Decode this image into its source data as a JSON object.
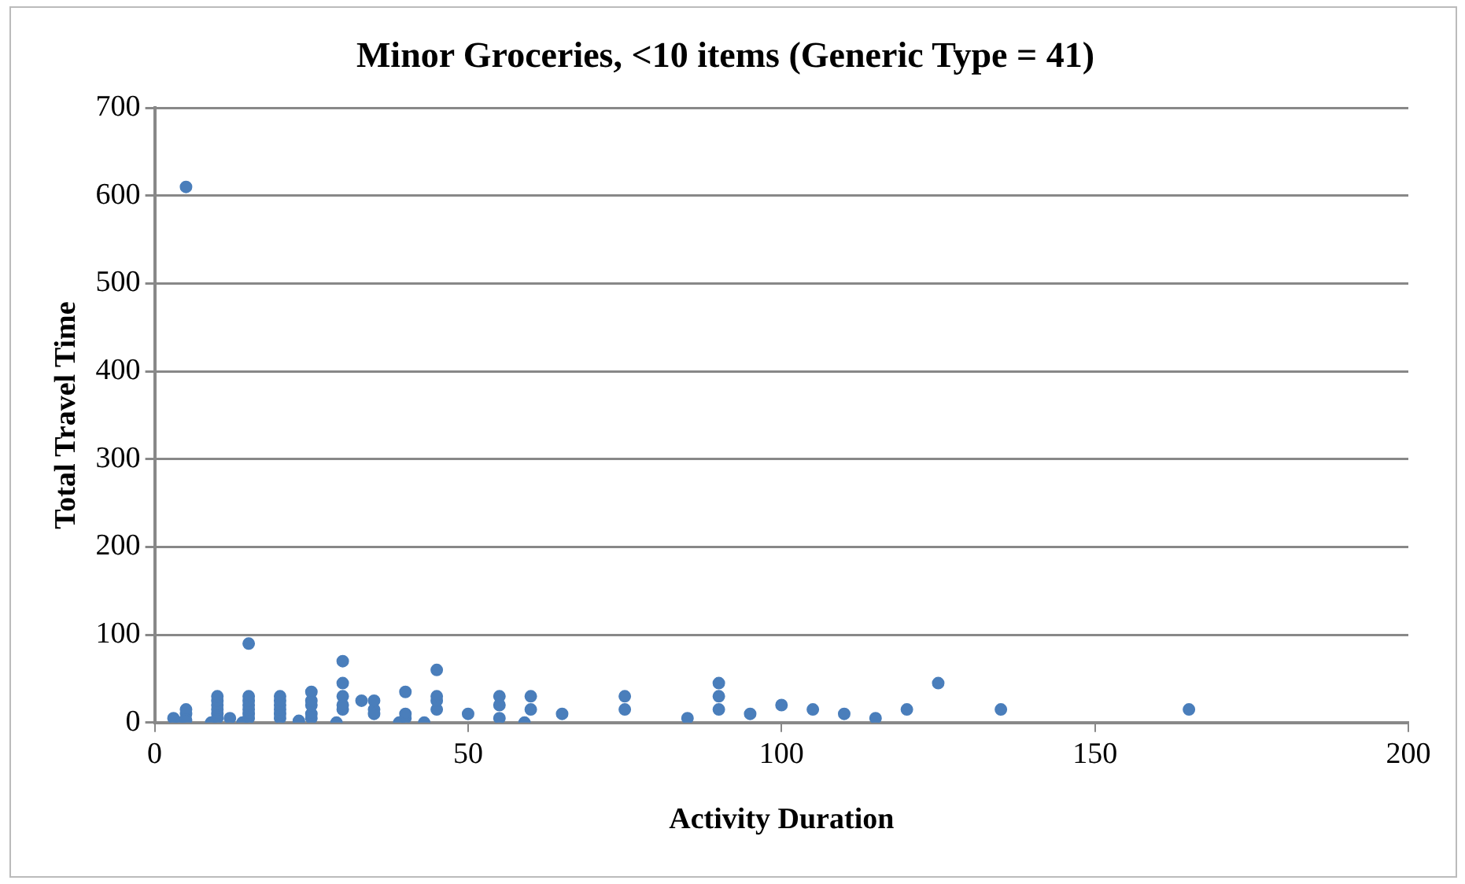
{
  "chart_data": {
    "type": "scatter",
    "title": "Minor Groceries, <10 items (Generic Type = 41)",
    "xlabel": "Activity Duration",
    "ylabel": "Total Travel Time",
    "xlim": [
      0,
      200
    ],
    "xticks": [
      0,
      50,
      100,
      150,
      200
    ],
    "ylim": [
      0,
      700
    ],
    "yticks": [
      0,
      100,
      200,
      300,
      400,
      500,
      600,
      700
    ],
    "grid": "y",
    "legend": false,
    "marker": "circle",
    "series": [
      {
        "color": "#4a7ebb",
        "x": [
          3,
          4,
          5,
          5,
          5,
          5,
          9,
          10,
          10,
          10,
          10,
          10,
          10,
          12,
          14,
          15,
          15,
          15,
          15,
          15,
          15,
          15,
          20,
          20,
          20,
          20,
          20,
          20,
          23,
          25,
          25,
          25,
          25,
          25,
          29,
          30,
          30,
          30,
          30,
          30,
          33,
          35,
          35,
          35,
          39,
          40,
          40,
          40,
          43,
          45,
          45,
          45,
          45,
          50,
          55,
          55,
          55,
          59,
          60,
          60,
          65,
          75,
          75,
          85,
          90,
          90,
          90,
          95,
          100,
          105,
          110,
          115,
          120,
          125,
          135,
          165
        ],
        "values": [
          5,
          0,
          10,
          15,
          610,
          3,
          0,
          5,
          10,
          15,
          20,
          25,
          30,
          5,
          0,
          5,
          10,
          15,
          20,
          25,
          30,
          90,
          5,
          10,
          15,
          20,
          25,
          30,
          2,
          5,
          10,
          20,
          25,
          35,
          0,
          15,
          20,
          30,
          45,
          70,
          25,
          15,
          25,
          10,
          0,
          5,
          10,
          35,
          0,
          15,
          25,
          30,
          60,
          10,
          5,
          20,
          30,
          0,
          15,
          30,
          10,
          15,
          30,
          5,
          15,
          30,
          45,
          10,
          20,
          15,
          10,
          5,
          15,
          45,
          15,
          15
        ]
      }
    ]
  }
}
